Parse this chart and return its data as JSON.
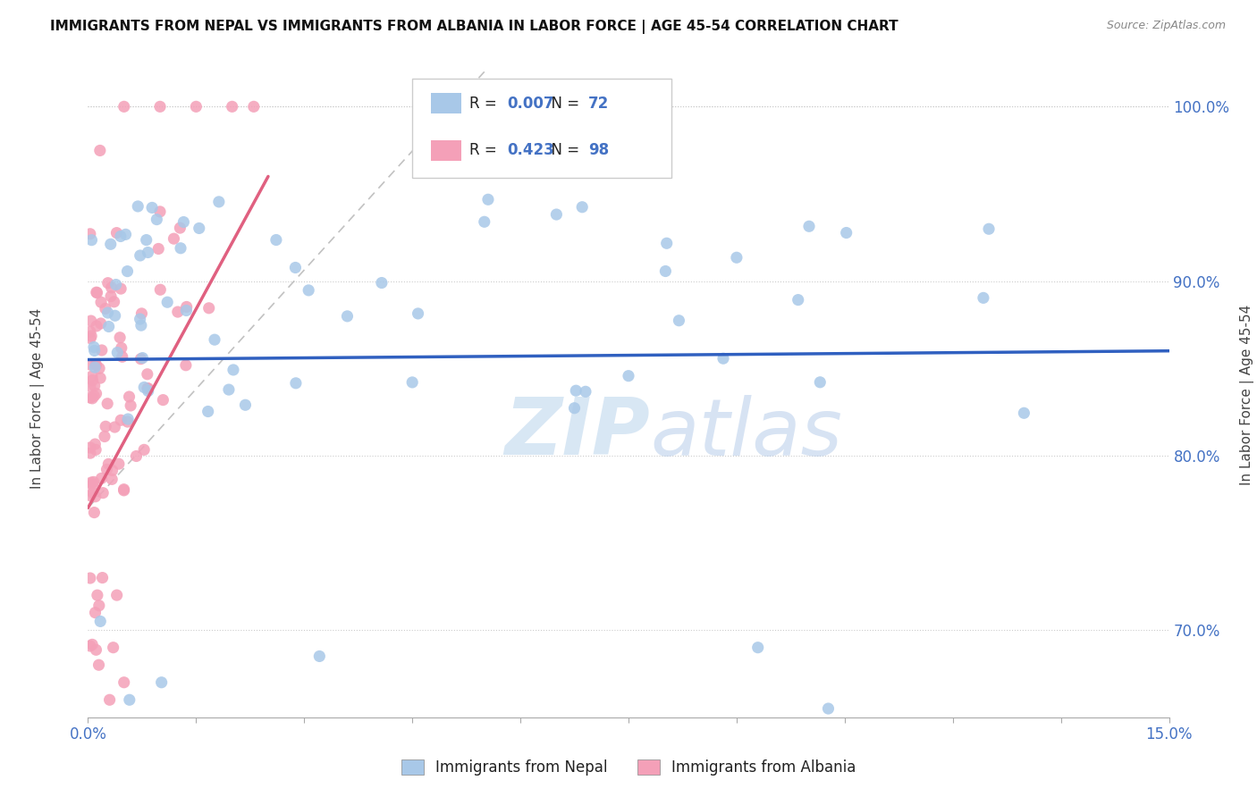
{
  "title": "IMMIGRANTS FROM NEPAL VS IMMIGRANTS FROM ALBANIA IN LABOR FORCE | AGE 45-54 CORRELATION CHART",
  "source": "Source: ZipAtlas.com",
  "x_min": 0.0,
  "x_max": 15.0,
  "y_min": 65.0,
  "y_max": 102.0,
  "nepal_color": "#a8c8e8",
  "albania_color": "#f4a0b8",
  "nepal_R": 0.007,
  "nepal_N": 72,
  "albania_R": 0.423,
  "albania_N": 98,
  "nepal_label": "Immigrants from Nepal",
  "albania_label": "Immigrants from Albania",
  "nepal_line_color": "#3060c0",
  "albania_line_color": "#e06080",
  "background_color": "#ffffff",
  "yticks": [
    70.0,
    80.0,
    90.0,
    100.0
  ],
  "ylabel_axis": "In Labor Force | Age 45-54"
}
